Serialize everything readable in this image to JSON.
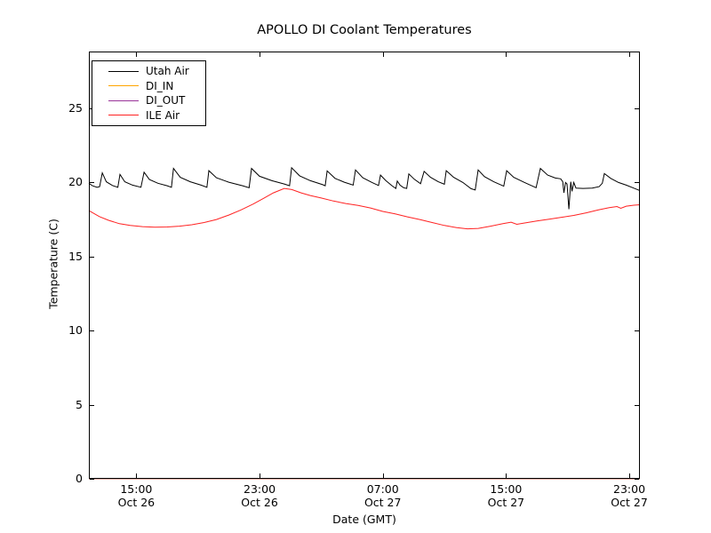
{
  "figure": {
    "title": "APOLLO DI Coolant Temperatures",
    "xlabel": "Date (GMT)",
    "ylabel": "Temperature (C)",
    "background": "#ffffff",
    "spine_color": "#000000"
  },
  "chart_data": {
    "type": "line",
    "title": "APOLLO DI Coolant Temperatures",
    "xlabel": "Date (GMT)",
    "ylabel": "Temperature (C)",
    "x_unit": "hours since Oct 26 00:00 GMT",
    "xlim": [
      11.92,
      47.69
    ],
    "ylim": [
      0,
      28.84
    ],
    "grid": false,
    "yticks": [
      0,
      5,
      10,
      15,
      20,
      25
    ],
    "xticks": [
      {
        "t": 15,
        "time": "15:00",
        "date": "Oct 26"
      },
      {
        "t": 23,
        "time": "23:00",
        "date": "Oct 26"
      },
      {
        "t": 31,
        "time": "07:00",
        "date": "Oct 27"
      },
      {
        "t": 39,
        "time": "15:00",
        "date": "Oct 27"
      },
      {
        "t": 47,
        "time": "23:00",
        "date": "Oct 27"
      }
    ],
    "legend": {
      "position": "upper left",
      "entries": [
        {
          "label": "Utah Air",
          "color": "#000000"
        },
        {
          "label": "DI_IN",
          "color": "#ffa500"
        },
        {
          "label": "DI_OUT",
          "color": "#993399"
        },
        {
          "label": "ILE Air",
          "color": "#ff2222"
        }
      ]
    },
    "series": [
      {
        "name": "Utah Air",
        "color": "#000000",
        "opacity": 1,
        "points": [
          [
            11.92,
            19.95
          ],
          [
            12.15,
            19.78
          ],
          [
            12.45,
            19.68
          ],
          [
            12.62,
            19.72
          ],
          [
            12.79,
            20.65
          ],
          [
            13.05,
            20.05
          ],
          [
            13.45,
            19.8
          ],
          [
            13.8,
            19.68
          ],
          [
            13.94,
            20.55
          ],
          [
            14.25,
            20.05
          ],
          [
            14.75,
            19.82
          ],
          [
            15.3,
            19.68
          ],
          [
            15.5,
            20.7
          ],
          [
            15.85,
            20.2
          ],
          [
            16.4,
            19.95
          ],
          [
            17.0,
            19.78
          ],
          [
            17.28,
            19.68
          ],
          [
            17.41,
            20.95
          ],
          [
            17.85,
            20.35
          ],
          [
            18.5,
            20.05
          ],
          [
            19.2,
            19.82
          ],
          [
            19.58,
            19.68
          ],
          [
            19.71,
            20.8
          ],
          [
            20.2,
            20.32
          ],
          [
            21.0,
            20.02
          ],
          [
            21.9,
            19.78
          ],
          [
            22.32,
            19.65
          ],
          [
            22.48,
            20.95
          ],
          [
            23.0,
            20.42
          ],
          [
            23.8,
            20.12
          ],
          [
            24.6,
            19.9
          ],
          [
            24.95,
            19.78
          ],
          [
            25.08,
            21.0
          ],
          [
            25.6,
            20.45
          ],
          [
            26.3,
            20.12
          ],
          [
            27.1,
            19.85
          ],
          [
            27.26,
            19.78
          ],
          [
            27.39,
            20.78
          ],
          [
            27.9,
            20.28
          ],
          [
            28.5,
            20.02
          ],
          [
            29.08,
            19.82
          ],
          [
            29.23,
            20.85
          ],
          [
            29.7,
            20.32
          ],
          [
            30.3,
            20.0
          ],
          [
            30.72,
            19.8
          ],
          [
            30.85,
            20.5
          ],
          [
            31.2,
            20.12
          ],
          [
            31.6,
            19.78
          ],
          [
            31.85,
            19.6
          ],
          [
            31.94,
            20.1
          ],
          [
            32.12,
            19.82
          ],
          [
            32.35,
            19.65
          ],
          [
            32.55,
            19.6
          ],
          [
            32.69,
            20.58
          ],
          [
            33.05,
            20.22
          ],
          [
            33.45,
            19.92
          ],
          [
            33.68,
            20.75
          ],
          [
            34.1,
            20.35
          ],
          [
            34.6,
            20.05
          ],
          [
            35.0,
            19.88
          ],
          [
            35.12,
            20.8
          ],
          [
            35.6,
            20.35
          ],
          [
            36.2,
            20.0
          ],
          [
            36.73,
            19.58
          ],
          [
            37.0,
            19.5
          ],
          [
            37.19,
            20.85
          ],
          [
            37.6,
            20.4
          ],
          [
            38.2,
            20.05
          ],
          [
            38.85,
            19.75
          ],
          [
            39.04,
            20.8
          ],
          [
            39.5,
            20.35
          ],
          [
            40.2,
            20.0
          ],
          [
            40.95,
            19.65
          ],
          [
            41.23,
            20.95
          ],
          [
            41.7,
            20.5
          ],
          [
            42.2,
            20.3
          ],
          [
            42.55,
            20.25
          ],
          [
            42.68,
            20.05
          ],
          [
            42.76,
            19.3
          ],
          [
            42.86,
            20.0
          ],
          [
            42.96,
            19.9
          ],
          [
            43.08,
            18.2
          ],
          [
            43.2,
            20.05
          ],
          [
            43.28,
            19.4
          ],
          [
            43.4,
            20.0
          ],
          [
            43.54,
            19.62
          ],
          [
            44.0,
            19.6
          ],
          [
            44.6,
            19.62
          ],
          [
            45.05,
            19.72
          ],
          [
            45.25,
            19.95
          ],
          [
            45.38,
            20.6
          ],
          [
            45.8,
            20.28
          ],
          [
            46.3,
            20.0
          ],
          [
            46.8,
            19.82
          ],
          [
            47.3,
            19.62
          ],
          [
            47.69,
            19.45
          ]
        ]
      },
      {
        "name": "DI_IN",
        "color": "#ffa500",
        "opacity": 1,
        "points": [
          [
            11.92,
            0
          ],
          [
            47.69,
            0
          ]
        ]
      },
      {
        "name": "DI_OUT",
        "color": "#993399",
        "opacity": 0.55,
        "points": [
          [
            11.92,
            0
          ],
          [
            47.69,
            0
          ]
        ]
      },
      {
        "name": "ILE Air",
        "color": "#ff2222",
        "opacity": 1,
        "points": [
          [
            11.92,
            18.1
          ],
          [
            12.6,
            17.7
          ],
          [
            13.2,
            17.45
          ],
          [
            13.9,
            17.22
          ],
          [
            14.6,
            17.1
          ],
          [
            15.4,
            17.02
          ],
          [
            16.2,
            16.98
          ],
          [
            17.0,
            17.0
          ],
          [
            17.8,
            17.05
          ],
          [
            18.6,
            17.15
          ],
          [
            19.4,
            17.3
          ],
          [
            20.2,
            17.5
          ],
          [
            21.0,
            17.8
          ],
          [
            21.8,
            18.15
          ],
          [
            22.6,
            18.55
          ],
          [
            23.3,
            18.95
          ],
          [
            23.9,
            19.3
          ],
          [
            24.6,
            19.6
          ],
          [
            25.1,
            19.52
          ],
          [
            25.7,
            19.3
          ],
          [
            26.3,
            19.12
          ],
          [
            27.0,
            18.95
          ],
          [
            27.8,
            18.75
          ],
          [
            28.6,
            18.58
          ],
          [
            29.4,
            18.45
          ],
          [
            30.2,
            18.28
          ],
          [
            31.0,
            18.05
          ],
          [
            31.8,
            17.88
          ],
          [
            32.6,
            17.68
          ],
          [
            33.4,
            17.5
          ],
          [
            34.2,
            17.3
          ],
          [
            35.0,
            17.1
          ],
          [
            35.8,
            16.95
          ],
          [
            36.5,
            16.87
          ],
          [
            37.2,
            16.9
          ],
          [
            38.0,
            17.05
          ],
          [
            38.8,
            17.22
          ],
          [
            39.33,
            17.32
          ],
          [
            39.7,
            17.18
          ],
          [
            40.3,
            17.28
          ],
          [
            41.0,
            17.4
          ],
          [
            41.8,
            17.52
          ],
          [
            42.6,
            17.65
          ],
          [
            43.4,
            17.78
          ],
          [
            44.2,
            17.95
          ],
          [
            45.0,
            18.15
          ],
          [
            45.7,
            18.3
          ],
          [
            46.2,
            18.38
          ],
          [
            46.45,
            18.26
          ],
          [
            46.8,
            18.4
          ],
          [
            47.3,
            18.47
          ],
          [
            47.69,
            18.5
          ]
        ]
      }
    ]
  }
}
